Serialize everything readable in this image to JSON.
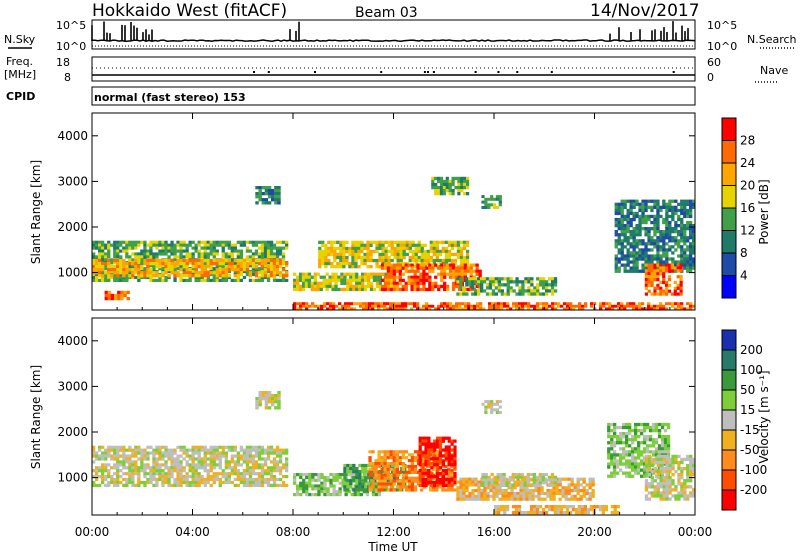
{
  "header": {
    "title": "Hokkaido West (fitACF)",
    "beam": "Beam 03",
    "date": "14/Nov/2017"
  },
  "summary": {
    "nsky_label": "N.Sky",
    "nsearch_label": "N.Search",
    "freq_label": "Freq.",
    "freq_unit": "[MHz]",
    "nave_label": "Nave",
    "cpid_label": "CPID",
    "cpid_text": "normal (fast stereo) 153",
    "noise_left_ticks": [
      "10^5",
      "10^0"
    ],
    "noise_right_ticks": [
      "10^5",
      "10^0"
    ],
    "freq_ticks": [
      "18",
      "8"
    ],
    "nave_ticks": [
      "60",
      "0"
    ]
  },
  "chart_data": [
    {
      "type": "heatmap",
      "name": "power",
      "ylabel": "Slant Range [km]",
      "xlabel": "",
      "ylim": [
        180,
        4500
      ],
      "yticks": [
        "1000",
        "2000",
        "3000",
        "4000"
      ],
      "xlim_hours": [
        0,
        24
      ],
      "colorbar": {
        "label": "Power [dB]",
        "ticks": [
          "28",
          "24",
          "20",
          "16",
          "12",
          "8",
          "4"
        ],
        "colors": [
          "#ff0000",
          "#ff6a00",
          "#ffa500",
          "#e5d400",
          "#3fa049",
          "#1f7a6a",
          "#1e4aa8",
          "#0000ff"
        ]
      },
      "regions": [
        {
          "t0": 0.0,
          "t1": 7.8,
          "r0": 800,
          "r1": 1700,
          "c": 4
        },
        {
          "t0": 0.0,
          "t1": 7.8,
          "r0": 900,
          "r1": 1300,
          "c": 2
        },
        {
          "t0": 0.5,
          "t1": 1.5,
          "r0": 400,
          "r1": 600,
          "c": 1
        },
        {
          "t0": 6.5,
          "t1": 7.5,
          "r0": 2500,
          "r1": 2900,
          "c": 5
        },
        {
          "t0": 8.0,
          "t1": 12.0,
          "r0": 600,
          "r1": 1000,
          "c": 3
        },
        {
          "t0": 9.0,
          "t1": 15.0,
          "r0": 1100,
          "r1": 1700,
          "c": 3
        },
        {
          "t0": 11.5,
          "t1": 15.5,
          "r0": 600,
          "r1": 1200,
          "c": 1
        },
        {
          "t0": 14.5,
          "t1": 18.5,
          "r0": 500,
          "r1": 900,
          "c": 4
        },
        {
          "t0": 13.5,
          "t1": 15.0,
          "r0": 2700,
          "r1": 3100,
          "c": 4
        },
        {
          "t0": 15.5,
          "t1": 16.3,
          "r0": 2400,
          "r1": 2700,
          "c": 4
        },
        {
          "t0": 20.8,
          "t1": 24.0,
          "r0": 1000,
          "r1": 2600,
          "c": 5
        },
        {
          "t0": 22.0,
          "t1": 23.5,
          "r0": 500,
          "r1": 1200,
          "c": 1
        },
        {
          "t0": 8.0,
          "t1": 24.0,
          "r0": 180,
          "r1": 350,
          "c": 1
        }
      ]
    },
    {
      "type": "heatmap",
      "name": "velocity",
      "ylabel": "Slant Range [km]",
      "xlabel": "Time UT",
      "ylim": [
        180,
        4500
      ],
      "yticks": [
        "1000",
        "2000",
        "3000",
        "4000"
      ],
      "xticks": [
        "00:00",
        "04:00",
        "08:00",
        "12:00",
        "16:00",
        "20:00",
        "00:00"
      ],
      "xlim_hours": [
        0,
        24
      ],
      "colorbar": {
        "label": "Velocity [m s⁻¹]",
        "ticks": [
          "200",
          "100",
          "50",
          "15",
          "-15",
          "-50",
          "-100",
          "-200"
        ],
        "colors": [
          "#1a2fb0",
          "#2a7a6a",
          "#3a9a3a",
          "#7dcf3a",
          "#bebebe",
          "#f0b020",
          "#ff8c1a",
          "#ff4d00",
          "#ff0000"
        ]
      },
      "regions": [
        {
          "t0": 0.0,
          "t1": 7.8,
          "r0": 800,
          "r1": 1700,
          "c": 4
        },
        {
          "t0": 6.5,
          "t1": 7.5,
          "r0": 2500,
          "r1": 2900,
          "c": 4
        },
        {
          "t0": 8.0,
          "t1": 11.5,
          "r0": 600,
          "r1": 1100,
          "c": 3
        },
        {
          "t0": 10.0,
          "t1": 12.5,
          "r0": 700,
          "r1": 1300,
          "c": 2
        },
        {
          "t0": 11.0,
          "t1": 14.5,
          "r0": 700,
          "r1": 1600,
          "c": 6
        },
        {
          "t0": 13.0,
          "t1": 14.5,
          "r0": 800,
          "r1": 1900,
          "c": 8
        },
        {
          "t0": 14.5,
          "t1": 20.0,
          "r0": 500,
          "r1": 1000,
          "c": 5
        },
        {
          "t0": 15.5,
          "t1": 18.5,
          "r0": 800,
          "r1": 1100,
          "c": 4
        },
        {
          "t0": 15.5,
          "t1": 16.3,
          "r0": 2400,
          "r1": 2700,
          "c": 4
        },
        {
          "t0": 20.5,
          "t1": 23.0,
          "r0": 1000,
          "r1": 2200,
          "c": 3
        },
        {
          "t0": 22.0,
          "t1": 24.0,
          "r0": 500,
          "r1": 1500,
          "c": 4
        },
        {
          "t0": 16.0,
          "t1": 21.0,
          "r0": 200,
          "r1": 400,
          "c": 5
        }
      ]
    }
  ]
}
